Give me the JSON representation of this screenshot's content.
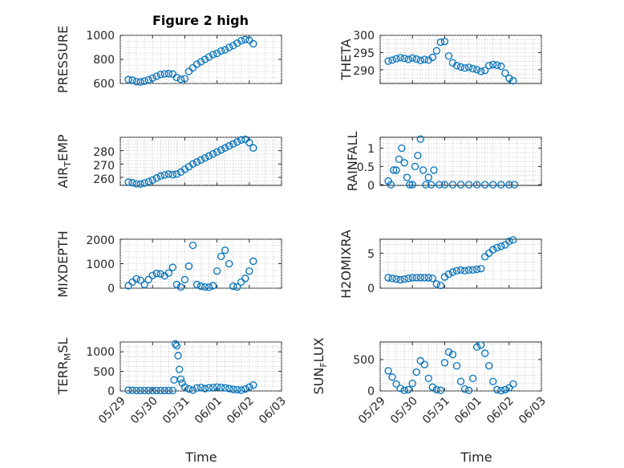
{
  "figure": {
    "title": "Figure 2 high"
  },
  "colors": {
    "marker": "#0072BD"
  },
  "chart_data": [
    {
      "type": "scatter",
      "ylabel": "PRESSURE",
      "ylim": [
        600,
        1000
      ],
      "yticks": [
        600,
        800,
        1000
      ],
      "xlim": [
        "05/29",
        "06/03"
      ],
      "grid": true,
      "marker": "circle",
      "series": [
        {
          "x": [
            "05/29 06:00",
            "05/29 09:00",
            "05/29 12:00",
            "05/29 15:00",
            "05/29 18:00",
            "05/29 21:00",
            "05/30 00:00",
            "05/30 03:00",
            "05/30 06:00",
            "05/30 09:00",
            "05/30 12:00",
            "05/30 15:00",
            "05/30 18:00",
            "05/30 21:00",
            "05/31 00:00",
            "05/31 03:00",
            "05/31 06:00",
            "05/31 09:00",
            "05/31 12:00",
            "05/31 15:00",
            "05/31 18:00",
            "05/31 21:00",
            "06/01 00:00",
            "06/01 03:00",
            "06/01 06:00",
            "06/01 09:00",
            "06/01 12:00",
            "06/01 15:00",
            "06/01 18:00",
            "06/01 21:00",
            "06/02 00:00",
            "06/02 03:00"
          ],
          "y": [
            632,
            628,
            615,
            612,
            620,
            630,
            645,
            660,
            675,
            680,
            682,
            678,
            650,
            635,
            640,
            700,
            730,
            760,
            780,
            800,
            820,
            840,
            850,
            870,
            880,
            900,
            915,
            935,
            955,
            965,
            960,
            930
          ]
        }
      ]
    },
    {
      "type": "scatter",
      "ylabel": "THETA",
      "ylim": [
        286,
        300
      ],
      "yticks": [
        290,
        295,
        300
      ],
      "xlim": [
        "05/29",
        "06/03"
      ],
      "grid": true,
      "marker": "circle",
      "series": [
        {
          "x": [
            "05/29 06:00",
            "05/29 09:00",
            "05/29 12:00",
            "05/29 15:00",
            "05/29 18:00",
            "05/29 21:00",
            "05/30 00:00",
            "05/30 03:00",
            "05/30 06:00",
            "05/30 09:00",
            "05/30 12:00",
            "05/30 15:00",
            "05/30 18:00",
            "05/30 21:00",
            "05/31 00:00",
            "05/31 03:00",
            "05/31 06:00",
            "05/31 09:00",
            "05/31 12:00",
            "05/31 15:00",
            "05/31 18:00",
            "05/31 21:00",
            "06/01 00:00",
            "06/01 03:00",
            "06/01 06:00",
            "06/01 09:00",
            "06/01 12:00",
            "06/01 15:00",
            "06/01 18:00",
            "06/01 21:00",
            "06/02 00:00",
            "06/02 03:00"
          ],
          "y": [
            292.5,
            292.8,
            293.2,
            293.5,
            293.3,
            293.0,
            293.4,
            293.1,
            292.7,
            293.0,
            292.8,
            293.6,
            295.5,
            298.0,
            298.2,
            294.0,
            292.0,
            291.2,
            290.8,
            290.5,
            290.7,
            290.3,
            290.0,
            289.5,
            289.8,
            291.2,
            291.5,
            291.3,
            291.0,
            289.0,
            287.5,
            286.8
          ]
        }
      ]
    },
    {
      "type": "scatter",
      "ylabel": "AIR_TEMP",
      "ylim": [
        254,
        290
      ],
      "yticks": [
        260,
        270,
        280
      ],
      "xlim": [
        "05/29",
        "06/03"
      ],
      "grid": true,
      "marker": "circle",
      "series": [
        {
          "x": [
            "05/29 06:00",
            "05/29 09:00",
            "05/29 12:00",
            "05/29 15:00",
            "05/29 18:00",
            "05/29 21:00",
            "05/30 00:00",
            "05/30 03:00",
            "05/30 06:00",
            "05/30 09:00",
            "05/30 12:00",
            "05/30 15:00",
            "05/30 18:00",
            "05/30 21:00",
            "05/31 00:00",
            "05/31 03:00",
            "05/31 06:00",
            "05/31 09:00",
            "05/31 12:00",
            "05/31 15:00",
            "05/31 18:00",
            "05/31 21:00",
            "06/01 00:00",
            "06/01 03:00",
            "06/01 06:00",
            "06/01 09:00",
            "06/01 12:00",
            "06/01 15:00",
            "06/01 18:00",
            "06/01 21:00",
            "06/02 00:00",
            "06/02 03:00"
          ],
          "y": [
            256.5,
            256.0,
            255.2,
            255.0,
            255.8,
            256.8,
            258.0,
            259.5,
            261.0,
            261.8,
            262.5,
            262.0,
            262.5,
            264.0,
            266.0,
            268.0,
            270.0,
            271.5,
            273.0,
            274.5,
            276.0,
            277.5,
            279.0,
            280.5,
            282.0,
            283.5,
            285.0,
            286.5,
            288.0,
            288.5,
            286.0,
            282.0
          ]
        }
      ]
    },
    {
      "type": "scatter",
      "ylabel": "RAINFALL",
      "ylim": [
        -0.02,
        1.3
      ],
      "yticks": [
        0,
        0.5,
        1
      ],
      "xlim": [
        "05/29",
        "06/03"
      ],
      "grid": true,
      "marker": "circle",
      "series": [
        {
          "x": [
            "05/29 06:00",
            "05/29 08:00",
            "05/29 10:00",
            "05/29 12:00",
            "05/29 14:00",
            "05/29 16:00",
            "05/29 18:00",
            "05/29 20:00",
            "05/29 22:00",
            "05/30 00:00",
            "05/30 02:00",
            "05/30 04:00",
            "05/30 06:00",
            "05/30 08:00",
            "05/30 10:00",
            "05/30 12:00",
            "05/30 14:00",
            "05/30 16:00",
            "05/30 20:00",
            "05/31 00:00",
            "05/31 06:00",
            "05/31 12:00",
            "05/31 18:00",
            "06/01 00:00",
            "06/01 06:00",
            "06/01 12:00",
            "06/01 18:00",
            "06/02 00:00",
            "06/02 04:00"
          ],
          "y": [
            0.1,
            0.0,
            0.4,
            0.4,
            0.7,
            1.0,
            0.6,
            0.2,
            0.0,
            0.0,
            0.5,
            0.8,
            1.25,
            0.4,
            0.0,
            0.2,
            0.0,
            0.4,
            0.0,
            0.0,
            0.0,
            0.0,
            0.0,
            0.0,
            0.0,
            0.0,
            0.0,
            0.0,
            0.0
          ]
        }
      ]
    },
    {
      "type": "scatter",
      "ylabel": "MIXDEPTH",
      "ylim": [
        0,
        2000
      ],
      "yticks": [
        0,
        1000,
        2000
      ],
      "xlim": [
        "05/29",
        "06/03"
      ],
      "grid": true,
      "marker": "circle",
      "series": [
        {
          "x": [
            "05/29 06:00",
            "05/29 09:00",
            "05/29 12:00",
            "05/29 15:00",
            "05/29 18:00",
            "05/29 21:00",
            "05/30 00:00",
            "05/30 03:00",
            "05/30 06:00",
            "05/30 09:00",
            "05/30 12:00",
            "05/30 15:00",
            "05/30 18:00",
            "05/30 21:00",
            "05/31 00:00",
            "05/31 03:00",
            "05/31 06:00",
            "05/31 09:00",
            "05/31 12:00",
            "05/31 15:00",
            "05/31 18:00",
            "05/31 21:00",
            "06/01 00:00",
            "06/01 03:00",
            "06/01 06:00",
            "06/01 09:00",
            "06/01 12:00",
            "06/01 15:00",
            "06/01 18:00",
            "06/01 21:00",
            "06/02 00:00",
            "06/02 03:00"
          ],
          "y": [
            100,
            250,
            380,
            320,
            150,
            350,
            520,
            600,
            580,
            500,
            620,
            850,
            150,
            50,
            350,
            900,
            1750,
            150,
            80,
            50,
            40,
            100,
            700,
            1300,
            1550,
            1000,
            80,
            50,
            250,
            400,
            700,
            1100
          ]
        }
      ]
    },
    {
      "type": "scatter",
      "ylabel": "H2OMIXRA",
      "ylim": [
        0,
        7
      ],
      "yticks": [
        0,
        5
      ],
      "xlim": [
        "05/29",
        "06/03"
      ],
      "grid": true,
      "marker": "circle",
      "series": [
        {
          "x": [
            "05/29 06:00",
            "05/29 09:00",
            "05/29 12:00",
            "05/29 15:00",
            "05/29 18:00",
            "05/29 21:00",
            "05/30 00:00",
            "05/30 03:00",
            "05/30 06:00",
            "05/30 09:00",
            "05/30 12:00",
            "05/30 15:00",
            "05/30 18:00",
            "05/30 21:00",
            "05/31 00:00",
            "05/31 03:00",
            "05/31 06:00",
            "05/31 09:00",
            "05/31 12:00",
            "05/31 15:00",
            "05/31 18:00",
            "05/31 21:00",
            "06/01 00:00",
            "06/01 03:00",
            "06/01 06:00",
            "06/01 09:00",
            "06/01 12:00",
            "06/01 15:00",
            "06/01 18:00",
            "06/01 21:00",
            "06/02 00:00",
            "06/02 03:00"
          ],
          "y": [
            1.5,
            1.4,
            1.3,
            1.2,
            1.3,
            1.4,
            1.5,
            1.5,
            1.5,
            1.5,
            1.5,
            1.4,
            0.6,
            0.4,
            1.6,
            2.0,
            2.3,
            2.5,
            2.6,
            2.5,
            2.6,
            2.6,
            2.7,
            2.8,
            4.5,
            5.0,
            5.5,
            5.8,
            6.0,
            6.2,
            6.7,
            6.9
          ]
        }
      ]
    },
    {
      "type": "scatter",
      "ylabel": "TERR_MSL",
      "ylim": [
        0,
        1250
      ],
      "yticks": [
        0,
        500,
        1000
      ],
      "xlim": [
        "05/29",
        "06/03"
      ],
      "grid": true,
      "marker": "circle",
      "series": [
        {
          "x": [
            "05/29 06:00",
            "05/29 09:00",
            "05/29 12:00",
            "05/29 15:00",
            "05/29 18:00",
            "05/29 21:00",
            "05/30 00:00",
            "05/30 03:00",
            "05/30 06:00",
            "05/30 09:00",
            "05/30 12:00",
            "05/30 15:00",
            "05/30 16:00",
            "05/30 17:00",
            "05/30 18:00",
            "05/30 19:00",
            "05/30 20:00",
            "05/30 21:00",
            "05/30 22:00",
            "05/31 00:00",
            "05/31 03:00",
            "05/31 06:00",
            "05/31 09:00",
            "05/31 12:00",
            "05/31 15:00",
            "05/31 18:00",
            "05/31 21:00",
            "06/01 00:00",
            "06/01 03:00",
            "06/01 06:00",
            "06/01 09:00",
            "06/01 12:00",
            "06/01 15:00",
            "06/01 18:00",
            "06/01 21:00",
            "06/02 00:00",
            "06/02 03:00"
          ],
          "y": [
            20,
            15,
            10,
            10,
            10,
            10,
            10,
            10,
            10,
            10,
            10,
            10,
            280,
            1200,
            1150,
            900,
            550,
            300,
            200,
            100,
            50,
            20,
            80,
            90,
            60,
            80,
            90,
            100,
            90,
            80,
            60,
            40,
            30,
            20,
            50,
            100,
            150
          ]
        }
      ]
    },
    {
      "type": "scatter",
      "ylabel": "SUN_FLUX",
      "ylim": [
        0,
        780
      ],
      "yticks": [
        0,
        500
      ],
      "xlim": [
        "05/29",
        "06/03"
      ],
      "grid": true,
      "marker": "circle",
      "series": [
        {
          "x": [
            "05/29 06:00",
            "05/29 09:00",
            "05/29 12:00",
            "05/29 15:00",
            "05/29 18:00",
            "05/29 21:00",
            "05/30 00:00",
            "05/30 03:00",
            "05/30 06:00",
            "05/30 09:00",
            "05/30 12:00",
            "05/30 15:00",
            "05/30 18:00",
            "05/30 21:00",
            "05/31 00:00",
            "05/31 03:00",
            "05/31 06:00",
            "05/31 09:00",
            "05/31 12:00",
            "05/31 15:00",
            "05/31 18:00",
            "05/31 21:00",
            "06/01 00:00",
            "06/01 03:00",
            "06/01 06:00",
            "06/01 09:00",
            "06/01 12:00",
            "06/01 15:00",
            "06/01 18:00",
            "06/01 21:00",
            "06/02 00:00",
            "06/02 03:00"
          ],
          "y": [
            320,
            220,
            110,
            40,
            10,
            20,
            120,
            300,
            480,
            420,
            200,
            60,
            20,
            10,
            450,
            620,
            580,
            400,
            150,
            30,
            10,
            200,
            700,
            730,
            600,
            400,
            150,
            20,
            5,
            20,
            50,
            110
          ]
        }
      ]
    }
  ],
  "axes": [
    {
      "ylabel": "PRESSURE",
      "ylabel_sub": "",
      "ylabel_tail": "",
      "yticks": [
        "600",
        "800",
        "1000"
      ]
    },
    {
      "ylabel": "THETA",
      "ylabel_sub": "",
      "ylabel_tail": "",
      "yticks": [
        "290",
        "295",
        "300"
      ]
    },
    {
      "ylabel": "AIR",
      "ylabel_sub": "T",
      "ylabel_tail": "EMP",
      "yticks": [
        "260",
        "270",
        "280"
      ]
    },
    {
      "ylabel": "RAINFALL",
      "ylabel_sub": "",
      "ylabel_tail": "",
      "yticks": [
        "0",
        "0.5",
        "1"
      ]
    },
    {
      "ylabel": "MIXDEPTH",
      "ylabel_sub": "",
      "ylabel_tail": "",
      "yticks": [
        "0",
        "1000",
        "2000"
      ]
    },
    {
      "ylabel": "H2OMIXRA",
      "ylabel_sub": "",
      "ylabel_tail": "",
      "yticks": [
        "0",
        "5"
      ]
    },
    {
      "ylabel": "TERR",
      "ylabel_sub": "M",
      "ylabel_tail": "SL",
      "yticks": [
        "0",
        "500",
        "1000"
      ]
    },
    {
      "ylabel": "SUN",
      "ylabel_sub": "F",
      "ylabel_tail": "LUX",
      "yticks": [
        "0",
        "500"
      ]
    }
  ],
  "xaxis": {
    "label": "Time",
    "ticks": [
      "05/29",
      "05/30",
      "05/31",
      "06/01",
      "06/02",
      "06/03"
    ]
  }
}
